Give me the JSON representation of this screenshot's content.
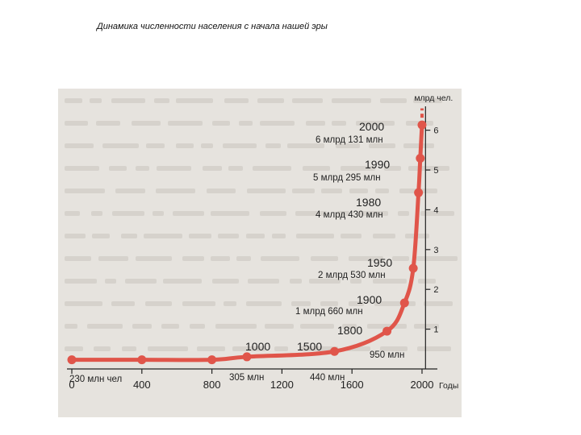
{
  "page_title": "Динамика численности населения с начала нашей эры",
  "colors": {
    "paper": "#e6e3de",
    "curve": "#e0554a",
    "axis": "#222222",
    "ink": "#1f1f1f",
    "bleed_text": "#c9c4bd"
  },
  "chart_data": {
    "type": "line",
    "title": "",
    "xlabel": "Годы",
    "ylabel": "млрд чел.",
    "xlim": [
      0,
      2060
    ],
    "ylim": [
      0,
      6.6
    ],
    "x_ticks": [
      "0",
      "400",
      "800",
      "1200",
      "1600",
      "2000"
    ],
    "y_ticks": [
      "1",
      "2",
      "3",
      "4",
      "5",
      "6"
    ],
    "grid": false,
    "series": [
      {
        "values": [
          {
            "x": 0,
            "y": 0.23
          },
          {
            "x": 400,
            "y": 0.23
          },
          {
            "x": 800,
            "y": 0.23
          },
          {
            "x": 1000,
            "y": 0.305
          },
          {
            "x": 1500,
            "y": 0.44
          },
          {
            "x": 1800,
            "y": 0.95
          },
          {
            "x": 1900,
            "y": 1.66
          },
          {
            "x": 1950,
            "y": 2.53
          },
          {
            "x": 1980,
            "y": 4.43
          },
          {
            "x": 1990,
            "y": 5.295
          },
          {
            "x": 2000,
            "y": 6.131
          }
        ]
      }
    ],
    "labels": [
      {
        "name": "year-1000",
        "text": "1000"
      },
      {
        "name": "year-1500",
        "text": "1500"
      },
      {
        "name": "year-1800",
        "text": "1800"
      },
      {
        "name": "year-1900",
        "text": "1900"
      },
      {
        "name": "year-1950",
        "text": "1950"
      },
      {
        "name": "year-1980",
        "text": "1980"
      },
      {
        "name": "year-1990",
        "text": "1990"
      },
      {
        "name": "year-2000",
        "text": "2000"
      },
      {
        "name": "value-0",
        "text": "230 млн чел"
      },
      {
        "name": "value-1000",
        "text": "305 млн"
      },
      {
        "name": "value-1500",
        "text": "440 млн"
      },
      {
        "name": "value-1800",
        "text": "950 млн"
      },
      {
        "name": "value-1900",
        "text": "1 млрд 660 млн"
      },
      {
        "name": "value-1950",
        "text": "2 млрд 530 млн"
      },
      {
        "name": "value-1980",
        "text": "4 млрд 430 млн"
      },
      {
        "name": "value-1990",
        "text": "5 млрд 295 млн"
      },
      {
        "name": "value-2000",
        "text": "6 млрд 131 млн"
      }
    ]
  }
}
